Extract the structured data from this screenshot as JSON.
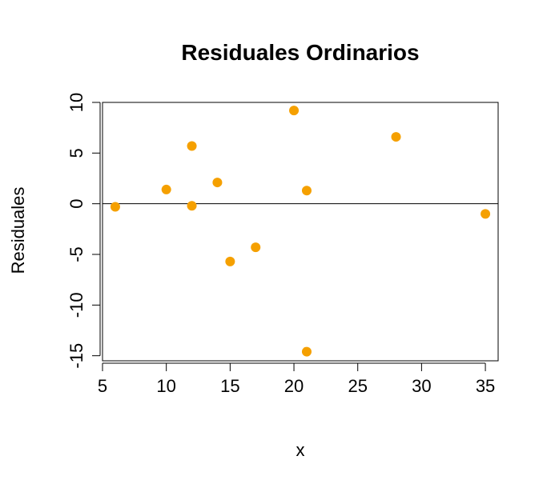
{
  "chart_data": {
    "type": "scatter",
    "title": "Residuales Ordinarios",
    "xlabel": "x",
    "ylabel": "Residuales",
    "xlim": [
      5,
      36
    ],
    "ylim": [
      -15.5,
      10
    ],
    "x_ticks": [
      5,
      10,
      15,
      20,
      25,
      30,
      35
    ],
    "y_ticks": [
      -15,
      -10,
      -5,
      0,
      5,
      10
    ],
    "reference_line_y": 0,
    "point_color": "#F5A000",
    "grid": false,
    "legend": "none",
    "series": [
      {
        "x": [
          6,
          10,
          12,
          12,
          14,
          15,
          17,
          20,
          21,
          21,
          28,
          35
        ],
        "y": [
          -0.3,
          1.4,
          5.7,
          -0.2,
          2.1,
          -5.7,
          -4.3,
          9.2,
          1.3,
          -14.6,
          6.6,
          -1.0
        ]
      }
    ]
  }
}
